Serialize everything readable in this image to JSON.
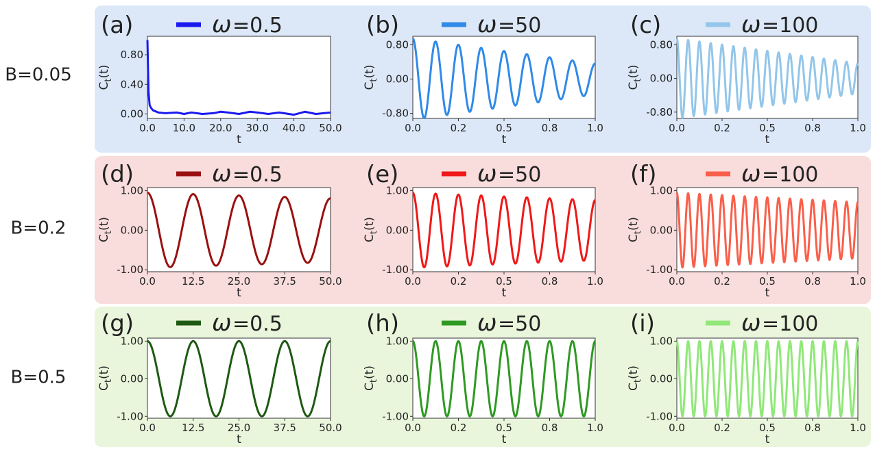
{
  "rows": [
    {
      "label": "B=0.05",
      "bg": "#dce8f8"
    },
    {
      "label": "B=0.2",
      "bg": "#f9dcdc"
    },
    {
      "label": "B=0.5",
      "bg": "#eaf6dc"
    }
  ],
  "legend_symbol": "ω",
  "chart_data": [
    {
      "id": "a",
      "panel_label": "(a)",
      "type": "line",
      "legend": "=0.5",
      "color": "#1a1aef",
      "ylabel": "Ct(t)",
      "xlabel": "t",
      "xlim": [
        0,
        50
      ],
      "ylim": [
        -0.06,
        1.05
      ],
      "xticks": [
        "0.0",
        "10.0",
        "20.0",
        "30.0",
        "40.0",
        "50.0"
      ],
      "xtick_values": [
        0,
        10,
        20,
        30,
        40,
        50
      ],
      "yticks": [
        "0.00",
        "0.40",
        "0.80"
      ],
      "ytick_values": [
        0,
        0.4,
        0.8
      ],
      "series": [
        {
          "x": [
            0,
            0.3,
            0.6,
            1,
            1.5,
            2,
            3,
            5,
            8,
            10,
            12,
            15,
            18,
            20,
            22,
            25,
            28,
            30,
            33,
            36,
            40,
            43,
            46,
            50
          ],
          "y": [
            1.0,
            0.3,
            0.12,
            0.08,
            0.05,
            0.04,
            0.02,
            0.01,
            0.02,
            0.0,
            0.02,
            0.0,
            0.01,
            0.03,
            0.02,
            0.0,
            0.03,
            0.02,
            0.0,
            0.02,
            -0.01,
            0.03,
            0.0,
            0.02
          ]
        }
      ]
    },
    {
      "id": "b",
      "panel_label": "(b)",
      "type": "line",
      "legend": "=50",
      "color": "#2f8ae8",
      "ylabel": "Ct(t)",
      "xlabel": "t",
      "xlim": [
        0,
        1
      ],
      "ylim": [
        -0.92,
        1.0
      ],
      "xticks": [
        "0.0",
        "0.2",
        "0.5",
        "0.8",
        "1.0"
      ],
      "xtick_values": [
        0,
        0.25,
        0.5,
        0.75,
        1
      ],
      "yticks": [
        "-0.80",
        "0.00",
        "0.80"
      ],
      "ytick_values": [
        -0.8,
        0,
        0.8
      ],
      "osc": {
        "amp0": 0.95,
        "decay": 0.62,
        "cycles": 8
      }
    },
    {
      "id": "c",
      "panel_label": "(c)",
      "type": "line",
      "legend": "=100",
      "color": "#93c6ea",
      "ylabel": "Ct(t)",
      "xlabel": "t",
      "xlim": [
        0,
        1
      ],
      "ylim": [
        -0.95,
        1.0
      ],
      "xticks": [
        "0.0",
        "0.2",
        "0.5",
        "0.8",
        "1.0"
      ],
      "xtick_values": [
        0,
        0.25,
        0.5,
        0.75,
        1
      ],
      "yticks": [
        "-0.80",
        "0.00",
        "0.80"
      ],
      "ytick_values": [
        -0.8,
        0,
        0.8
      ],
      "osc": {
        "amp0": 0.95,
        "decay": 0.62,
        "cycles": 16
      }
    },
    {
      "id": "d",
      "panel_label": "(d)",
      "type": "line",
      "legend": "=0.5",
      "color": "#9a1010",
      "ylabel": "Ct(t)",
      "xlabel": "t",
      "xlim": [
        0,
        50
      ],
      "ylim": [
        -1.05,
        1.08
      ],
      "xticks": [
        "0.0",
        "12.5",
        "25.0",
        "37.5",
        "50.0"
      ],
      "xtick_values": [
        0,
        12.5,
        25,
        37.5,
        50
      ],
      "yticks": [
        "-1.00",
        "0.00",
        "1.00"
      ],
      "ytick_values": [
        -1,
        0,
        1
      ],
      "osc": {
        "amp0": 0.95,
        "decay": 0.15,
        "cycles": 4
      }
    },
    {
      "id": "e",
      "panel_label": "(e)",
      "type": "line",
      "legend": "=50",
      "color": "#f01818",
      "ylabel": "Ct(t)",
      "xlabel": "t",
      "xlim": [
        0,
        1
      ],
      "ylim": [
        -1.05,
        1.08
      ],
      "xticks": [
        "0.0",
        "0.2",
        "0.5",
        "0.8",
        "1.0"
      ],
      "xtick_values": [
        0,
        0.25,
        0.5,
        0.75,
        1
      ],
      "yticks": [
        "-1.00",
        "0.00",
        "1.00"
      ],
      "ytick_values": [
        -1,
        0,
        1
      ],
      "osc": {
        "amp0": 0.95,
        "decay": 0.2,
        "cycles": 8
      }
    },
    {
      "id": "f",
      "panel_label": "(f)",
      "type": "line",
      "legend": "=100",
      "color": "#fa5f4a",
      "ylabel": "Ct(t)",
      "xlabel": "t",
      "xlim": [
        0,
        1
      ],
      "ylim": [
        -1.05,
        1.08
      ],
      "xticks": [
        "0.0",
        "0.2",
        "0.5",
        "0.8",
        "1.0"
      ],
      "xtick_values": [
        0,
        0.25,
        0.5,
        0.75,
        1
      ],
      "yticks": [
        "-1.00",
        "0.00",
        "1.00"
      ],
      "ytick_values": [
        -1,
        0,
        1
      ],
      "osc": {
        "amp0": 0.95,
        "decay": 0.25,
        "cycles": 16
      }
    },
    {
      "id": "g",
      "panel_label": "(g)",
      "type": "line",
      "legend": "=0.5",
      "color": "#1e5a12",
      "ylabel": "Ct(t)",
      "xlabel": "t",
      "xlim": [
        0,
        50
      ],
      "ylim": [
        -1.05,
        1.08
      ],
      "xticks": [
        "0.0",
        "12.5",
        "25.0",
        "37.5",
        "50.0"
      ],
      "xtick_values": [
        0,
        12.5,
        25,
        37.5,
        50
      ],
      "yticks": [
        "-1.00",
        "0.00",
        "1.00"
      ],
      "ytick_values": [
        -1,
        0,
        1
      ],
      "osc": {
        "amp0": 1.0,
        "decay": 0.0,
        "cycles": 4
      }
    },
    {
      "id": "h",
      "panel_label": "(h)",
      "type": "line",
      "legend": "=50",
      "color": "#2e9a22",
      "ylabel": "Ct(t)",
      "xlabel": "t",
      "xlim": [
        0,
        1
      ],
      "ylim": [
        -1.05,
        1.08
      ],
      "xticks": [
        "0.0",
        "0.2",
        "0.5",
        "0.8",
        "1.0"
      ],
      "xtick_values": [
        0,
        0.25,
        0.5,
        0.75,
        1
      ],
      "yticks": [
        "-1.00",
        "0.00",
        "1.00"
      ],
      "ytick_values": [
        -1,
        0,
        1
      ],
      "osc": {
        "amp0": 1.0,
        "decay": 0.0,
        "cycles": 8
      }
    },
    {
      "id": "i",
      "panel_label": "(i)",
      "type": "line",
      "legend": "=100",
      "color": "#90e878",
      "ylabel": "Ct(t)",
      "xlabel": "t",
      "xlim": [
        0,
        1
      ],
      "ylim": [
        -1.05,
        1.08
      ],
      "xticks": [
        "0.0",
        "0.2",
        "0.5",
        "0.8",
        "1.0"
      ],
      "xtick_values": [
        0,
        0.25,
        0.5,
        0.75,
        1
      ],
      "yticks": [
        "-1.00",
        "0.00",
        "1.00"
      ],
      "ytick_values": [
        -1,
        0,
        1
      ],
      "osc": {
        "amp0": 1.0,
        "decay": 0.0,
        "cycles": 16
      }
    }
  ]
}
